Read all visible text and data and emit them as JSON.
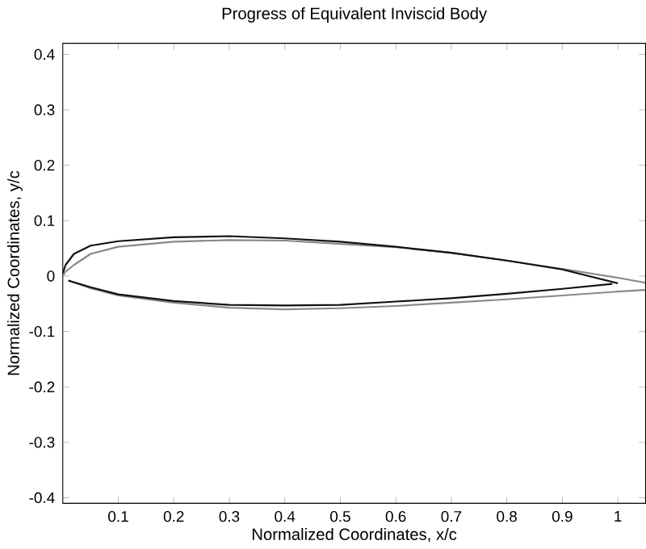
{
  "chart_data": {
    "type": "line",
    "title": "Progress of Equivalent Inviscid Body",
    "xlabel": "Normalized Coordinates, x/c",
    "ylabel": "Normalized Coordinates, y/c",
    "xlim": [
      0,
      1.05
    ],
    "ylim": [
      -0.41,
      0.42
    ],
    "xticks": [
      0.1,
      0.2,
      0.3,
      0.4,
      0.5,
      0.6,
      0.7,
      0.8,
      0.9,
      1
    ],
    "yticks": [
      -0.4,
      -0.3,
      -0.2,
      -0.1,
      0,
      0.1,
      0.2,
      0.3,
      0.4
    ],
    "grid": false,
    "marker": "none",
    "line_style": "solid",
    "series": [
      {
        "color": "#888888",
        "x": [
          0.0,
          0.005,
          0.02,
          0.05,
          0.1,
          0.2,
          0.3,
          0.4,
          0.5,
          0.6,
          0.7,
          0.8,
          0.9,
          1.0,
          1.05
        ],
        "values": [
          0.0,
          0.008,
          0.02,
          0.04,
          0.053,
          0.062,
          0.065,
          0.064,
          0.058,
          0.052,
          0.042,
          0.028,
          0.013,
          -0.003,
          -0.012
        ]
      },
      {
        "color": "#888888",
        "x": [
          0.01,
          0.05,
          0.1,
          0.2,
          0.3,
          0.4,
          0.5,
          0.6,
          0.7,
          0.8,
          0.9,
          1.0,
          1.05
        ],
        "values": [
          -0.008,
          -0.022,
          -0.035,
          -0.048,
          -0.057,
          -0.06,
          -0.058,
          -0.054,
          -0.048,
          -0.042,
          -0.035,
          -0.028,
          -0.025
        ]
      },
      {
        "color": "#111111",
        "x": [
          0.0,
          0.005,
          0.02,
          0.05,
          0.1,
          0.2,
          0.3,
          0.4,
          0.5,
          0.6,
          0.7,
          0.8,
          0.9,
          1.0
        ],
        "values": [
          0.005,
          0.02,
          0.04,
          0.055,
          0.063,
          0.07,
          0.072,
          0.068,
          0.062,
          0.053,
          0.042,
          0.028,
          0.012,
          -0.013
        ]
      },
      {
        "color": "#111111",
        "x": [
          0.01,
          0.05,
          0.1,
          0.2,
          0.3,
          0.4,
          0.5,
          0.6,
          0.7,
          0.8,
          0.9,
          0.99
        ],
        "values": [
          -0.008,
          -0.02,
          -0.033,
          -0.045,
          -0.052,
          -0.053,
          -0.052,
          -0.046,
          -0.04,
          -0.032,
          -0.023,
          -0.014
        ]
      }
    ]
  }
}
